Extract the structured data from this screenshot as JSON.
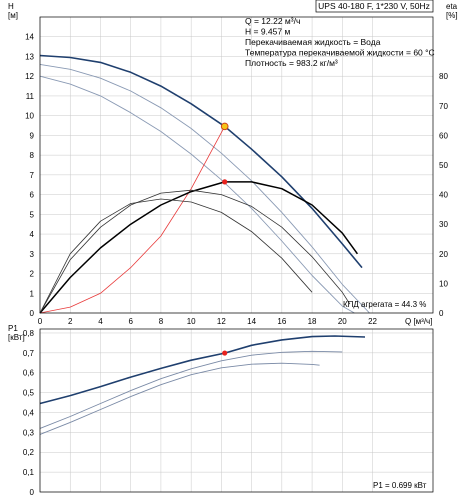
{
  "chart_data": [
    {
      "type": "line",
      "title": "UPS 40-180 F, 1*230 V, 50Hz",
      "xlabel": "Q [м³/ч]",
      "ylabel_left": "H\n[м]",
      "ylabel_right": "eta\n[%]",
      "xlim": [
        0,
        26
      ],
      "ylim": [
        0,
        15
      ],
      "ylim_right": [
        0,
        100
      ],
      "x_ticks": [
        "0",
        "2",
        "4",
        "6",
        "8",
        "10",
        "12",
        "14",
        "16",
        "18",
        "20",
        "22"
      ],
      "x_tick_values": [
        0,
        2,
        4,
        6,
        8,
        10,
        12,
        14,
        16,
        18,
        20,
        22
      ],
      "y_ticks": [
        "0",
        "1",
        "2",
        "3",
        "4",
        "5",
        "6",
        "7",
        "8",
        "9",
        "10",
        "11",
        "12",
        "13",
        "14"
      ],
      "y_tick_values": [
        0,
        1,
        2,
        3,
        4,
        5,
        6,
        7,
        8,
        9,
        10,
        11,
        12,
        13,
        14
      ],
      "y_right_ticks": [
        "0",
        "10",
        "20",
        "30",
        "40",
        "50",
        "60",
        "70",
        "80"
      ],
      "y_right_tick_values": [
        0,
        10,
        20,
        30,
        40,
        50,
        60,
        70,
        80
      ],
      "grid": true,
      "info_lines": [
        "Q = 12.22 м³/ч",
        "H = 9.457 м",
        "Перекачиваемая жидкость = Вода",
        "Температура перекачиваемой жидкости = 60 °C",
        "Плотность = 983.2 кг/м³"
      ],
      "efficiency_label": "КПД агрегата = 44.3 %",
      "duty_point": {
        "x": 12.22,
        "y": 9.457
      },
      "efficiency_point": {
        "x": 12.22,
        "y": 44.3
      },
      "series": [
        {
          "axis": "left",
          "color": "#1f3f6e",
          "width": 1.6,
          "x": [
            0,
            2,
            4,
            6,
            8,
            10,
            12.22,
            14,
            16,
            18,
            20,
            21.3
          ],
          "y": [
            13.05,
            12.95,
            12.7,
            12.2,
            11.5,
            10.6,
            9.457,
            8.3,
            6.9,
            5.3,
            3.5,
            2.3
          ]
        },
        {
          "axis": "left",
          "color": "#8a9ab4",
          "width": 0.9,
          "x": [
            0,
            2,
            4,
            6,
            8,
            10,
            12,
            14,
            16,
            18,
            20,
            21.8
          ],
          "y": [
            12.6,
            12.35,
            11.9,
            11.25,
            10.4,
            9.35,
            8.1,
            6.7,
            5.1,
            3.35,
            1.45,
            0
          ]
        },
        {
          "axis": "left",
          "color": "#8a9ab4",
          "width": 0.9,
          "x": [
            0,
            2,
            4,
            6,
            8,
            10,
            12,
            14,
            16,
            18,
            20,
            20.8
          ],
          "y": [
            12.0,
            11.6,
            11.0,
            10.15,
            9.2,
            8.05,
            6.75,
            5.3,
            3.65,
            1.9,
            0.35,
            0
          ]
        },
        {
          "axis": "left",
          "color": "#e83a3a",
          "width": 0.8,
          "x": [
            0,
            2,
            4,
            6,
            8,
            10,
            12.22
          ],
          "y": [
            0,
            0.3,
            1.0,
            2.3,
            3.9,
            6.3,
            9.457
          ]
        },
        {
          "axis": "right",
          "color": "#000000",
          "width": 1.5,
          "x": [
            0,
            2,
            4,
            6,
            8,
            10,
            12.22,
            14,
            16,
            18,
            20,
            21
          ],
          "y": [
            0,
            12,
            22,
            30,
            36.5,
            41,
            44.3,
            44.3,
            42,
            36.5,
            27,
            20
          ]
        },
        {
          "axis": "right",
          "color": "#333333",
          "width": 0.8,
          "x": [
            0,
            2,
            4,
            6,
            8,
            10,
            12,
            14,
            16,
            18,
            20,
            20.5
          ],
          "y": [
            0,
            18,
            29,
            36.5,
            40.5,
            41.5,
            40,
            36,
            29,
            19,
            7,
            3
          ]
        },
        {
          "axis": "right",
          "color": "#333333",
          "width": 0.8,
          "x": [
            0,
            2,
            4,
            6,
            8,
            10,
            12,
            14,
            16,
            18
          ],
          "y": [
            0,
            20,
            31,
            37,
            38.5,
            37.5,
            34,
            27.5,
            18.5,
            7
          ]
        }
      ]
    },
    {
      "type": "line",
      "xlim": [
        0,
        26
      ],
      "ylim": [
        0,
        0.82
      ],
      "ylabel": "P1\n[кВт]",
      "y_ticks": [
        "0",
        "0,1",
        "0,2",
        "0,3",
        "0,4",
        "0,5",
        "0,6",
        "0,7",
        "0,8"
      ],
      "y_tick_values": [
        0,
        0.1,
        0.2,
        0.3,
        0.4,
        0.5,
        0.6,
        0.7,
        0.8
      ],
      "power_label": "P1 = 0.699 кВт",
      "duty_point": {
        "x": 12.22,
        "y": 0.699
      },
      "grid": true,
      "series": [
        {
          "color": "#1f3f6e",
          "width": 1.6,
          "x": [
            0,
            2,
            4,
            6,
            8,
            10,
            12.22,
            14,
            16,
            18,
            19.5,
            21.5
          ],
          "y": [
            0.445,
            0.485,
            0.53,
            0.578,
            0.622,
            0.663,
            0.699,
            0.738,
            0.765,
            0.782,
            0.785,
            0.78
          ]
        },
        {
          "color": "#7a8aa6",
          "width": 0.9,
          "x": [
            0,
            2,
            4,
            6,
            8,
            10,
            12,
            14,
            16,
            18,
            20
          ],
          "y": [
            0.32,
            0.38,
            0.445,
            0.51,
            0.57,
            0.62,
            0.66,
            0.688,
            0.703,
            0.708,
            0.705
          ]
        },
        {
          "color": "#7a8aa6",
          "width": 0.9,
          "x": [
            0,
            2,
            4,
            6,
            8,
            10,
            12,
            14,
            16,
            18,
            18.5
          ],
          "y": [
            0.29,
            0.35,
            0.415,
            0.48,
            0.54,
            0.59,
            0.625,
            0.643,
            0.648,
            0.642,
            0.638
          ]
        }
      ]
    }
  ]
}
